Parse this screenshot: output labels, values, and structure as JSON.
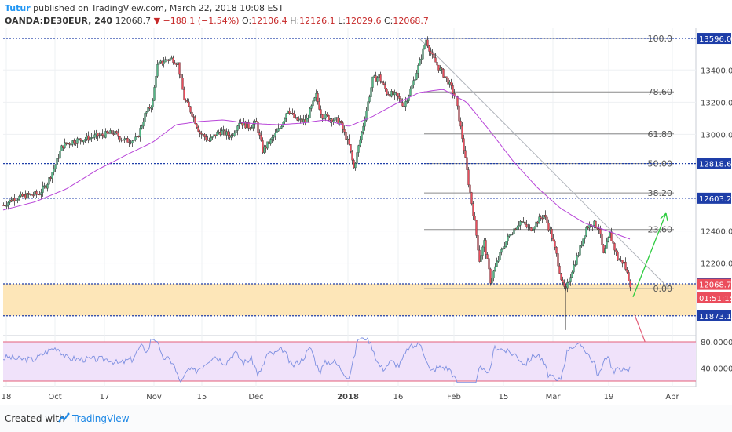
{
  "header": {
    "author": "Tutur",
    "published": "published on TradingView.com, March 22, 2018 10:08 EST",
    "symbol": "OANDA:DE30EUR, 240",
    "last": "12068.7",
    "change": "−188.1 (−1.54%)",
    "open_label": "O:",
    "open": "12106.4",
    "high_label": "H:",
    "high": "12126.1",
    "low_label": "L:",
    "low": "12029.6",
    "close_label": "C:",
    "close": "12068.7"
  },
  "footer": {
    "created": "Created with",
    "brand": "TradingView"
  },
  "colors": {
    "up": "#53b987",
    "down": "#eb4d5c",
    "ma": "#b845d8",
    "support_zone": "#fde6b8",
    "resistance_line": "#1e3ea8",
    "rsi_band": "#f0e2fa",
    "rsi_line": "#7b8ee0",
    "rsi_bound": "#e35f7a"
  },
  "chart_data": [
    {
      "type": "candlestick",
      "x_labels": [
        "18",
        "Oct",
        "17",
        "Nov",
        "15",
        "Dec",
        "2018",
        "16",
        "Feb",
        "15",
        "Mar",
        "19",
        "Apr"
      ],
      "ylim": [
        11760,
        13640
      ],
      "y_ticks": [
        {
          "value": 13400,
          "label": "13400.0"
        },
        {
          "value": 13200,
          "label": "13200.0"
        },
        {
          "value": 13000,
          "label": "13000.0"
        },
        {
          "value": 12400,
          "label": "12400.0"
        },
        {
          "value": 12200,
          "label": "12200.0"
        }
      ],
      "price_markers": [
        {
          "label": "13596.0",
          "value": 13596,
          "color": "#1e3ea8"
        },
        {
          "label": "12818.6",
          "value": 12818.6,
          "color": "#1e3ea8"
        },
        {
          "label": "12603.2",
          "value": 12603.2,
          "color": "#1e3ea8"
        },
        {
          "label": "12071.6",
          "value": 12071.6,
          "color": "#1e3ea8"
        },
        {
          "label": "12068.7",
          "value": 12068.7,
          "color": "#eb4d5c"
        },
        {
          "label": "01:51:15",
          "value": 11985,
          "color": "#eb4d5c"
        },
        {
          "label": "11873.1",
          "value": 11873.1,
          "color": "#1e3ea8"
        }
      ],
      "fib_levels": [
        {
          "label": "100.0",
          "value": 13596
        },
        {
          "label": "78.60",
          "value": 13264
        },
        {
          "label": "61.80",
          "value": 13003
        },
        {
          "label": "50.00",
          "value": 12819
        },
        {
          "label": "38.20",
          "value": 12636
        },
        {
          "label": "23.60",
          "value": 12409
        },
        {
          "label": "0.00",
          "value": 12042
        }
      ],
      "horizontal_lines": [
        13596,
        12818.6,
        12603.2,
        12071.6,
        11873.1
      ],
      "support_zone": [
        11873.1,
        12071.6
      ],
      "trendline": {
        "from": {
          "bar": 530,
          "value": 13596
        },
        "to": {
          "bar": 848,
          "value": 12042
        }
      },
      "projection_arrows": [
        {
          "color": "#2ecc40",
          "from_value": 11990,
          "to_value": 12510
        },
        {
          "color": "#e35f7a",
          "from_value": 11880,
          "to_value": 11600
        }
      ],
      "series": [
        {
          "name": "DE30EUR",
          "anchors": [
            [
              0,
              12560
            ],
            [
              12,
              12600
            ],
            [
              30,
              12620
            ],
            [
              45,
              12630
            ],
            [
              55,
              12690
            ],
            [
              65,
              12800
            ],
            [
              75,
              12930
            ],
            [
              90,
              12960
            ],
            [
              110,
              12980
            ],
            [
              130,
              13000
            ],
            [
              140,
              13010
            ],
            [
              155,
              12960
            ],
            [
              170,
              12970
            ],
            [
              180,
              13120
            ],
            [
              190,
              13200
            ],
            [
              195,
              13420
            ],
            [
              205,
              13460
            ],
            [
              215,
              13470
            ],
            [
              222,
              13440
            ],
            [
              230,
              13220
            ],
            [
              240,
              13130
            ],
            [
              250,
              13010
            ],
            [
              262,
              12960
            ],
            [
              275,
              13020
            ],
            [
              290,
              12990
            ],
            [
              300,
              13080
            ],
            [
              312,
              13050
            ],
            [
              322,
              13070
            ],
            [
              330,
              12900
            ],
            [
              340,
              12960
            ],
            [
              352,
              13040
            ],
            [
              362,
              13160
            ],
            [
              372,
              13090
            ],
            [
              385,
              13080
            ],
            [
              398,
              13240
            ],
            [
              405,
              13120
            ],
            [
              416,
              13100
            ],
            [
              428,
              13080
            ],
            [
              440,
              12930
            ],
            [
              446,
              12790
            ],
            [
              455,
              12990
            ],
            [
              462,
              13150
            ],
            [
              470,
              13340
            ],
            [
              478,
              13360
            ],
            [
              488,
              13260
            ],
            [
              500,
              13240
            ],
            [
              510,
              13180
            ],
            [
              520,
              13300
            ],
            [
              530,
              13450
            ],
            [
              538,
              13590
            ],
            [
              546,
              13480
            ],
            [
              556,
              13400
            ],
            [
              566,
              13330
            ],
            [
              576,
              13220
            ],
            [
              584,
              12980
            ],
            [
              592,
              12700
            ],
            [
              600,
              12450
            ],
            [
              606,
              12220
            ],
            [
              612,
              12330
            ],
            [
              620,
              12090
            ],
            [
              628,
              12200
            ],
            [
              636,
              12300
            ],
            [
              646,
              12390
            ],
            [
              658,
              12460
            ],
            [
              670,
              12410
            ],
            [
              680,
              12460
            ],
            [
              688,
              12500
            ],
            [
              696,
              12400
            ],
            [
              704,
              12250
            ],
            [
              712,
              12060
            ],
            [
              716,
              12030
            ],
            [
              724,
              12160
            ],
            [
              732,
              12260
            ],
            [
              742,
              12420
            ],
            [
              750,
              12450
            ],
            [
              758,
              12420
            ],
            [
              764,
              12250
            ],
            [
              772,
              12380
            ],
            [
              782,
              12230
            ],
            [
              790,
              12200
            ],
            [
              798,
              12070
            ]
          ]
        },
        {
          "name": "MA",
          "anchors": [
            [
              0,
              12530
            ],
            [
              40,
              12580
            ],
            [
              80,
              12660
            ],
            [
              120,
              12780
            ],
            [
              160,
              12880
            ],
            [
              190,
              12950
            ],
            [
              220,
              13060
            ],
            [
              250,
              13080
            ],
            [
              280,
              13090
            ],
            [
              310,
              13070
            ],
            [
              350,
              13060
            ],
            [
              380,
              13070
            ],
            [
              410,
              13090
            ],
            [
              440,
              13050
            ],
            [
              470,
              13110
            ],
            [
              500,
              13190
            ],
            [
              530,
              13260
            ],
            [
              560,
              13280
            ],
            [
              590,
              13200
            ],
            [
              620,
              13020
            ],
            [
              650,
              12830
            ],
            [
              680,
              12670
            ],
            [
              710,
              12540
            ],
            [
              740,
              12450
            ],
            [
              770,
              12400
            ],
            [
              798,
              12350
            ]
          ]
        }
      ]
    },
    {
      "type": "line",
      "name": "RSI",
      "ylim": [
        0,
        100
      ],
      "bounds": [
        80,
        20
      ],
      "y_ticks": [
        {
          "value": 80,
          "label": "80.0000"
        },
        {
          "value": 40,
          "label": "40.0000"
        }
      ]
    }
  ]
}
